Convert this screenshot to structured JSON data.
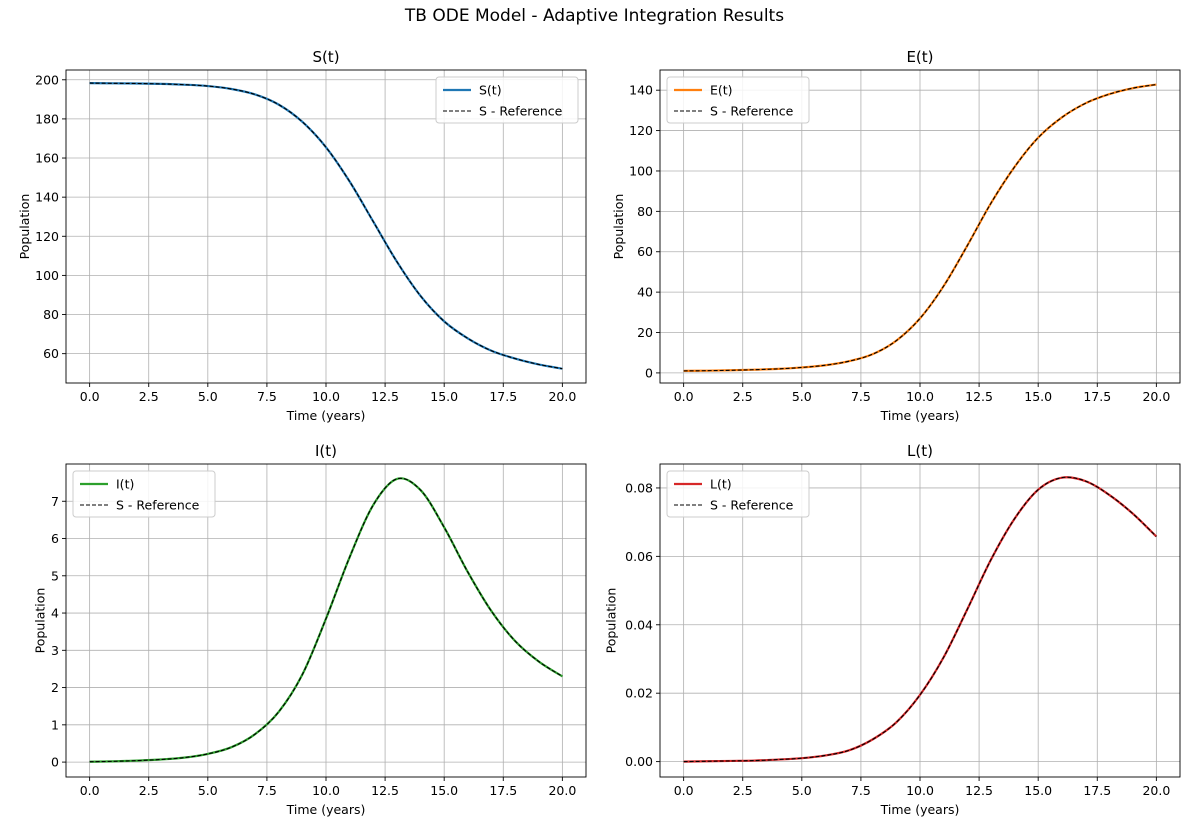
{
  "figure": {
    "title": "TB ODE Model - Adaptive Integration Results"
  },
  "chart_data": [
    {
      "type": "line",
      "title": "S(t)",
      "xlabel": "Time (years)",
      "ylabel": "Population",
      "xlim": [
        -1,
        21
      ],
      "ylim": [
        45,
        205
      ],
      "xticks": [
        "0.0",
        "2.5",
        "5.0",
        "7.5",
        "10.0",
        "12.5",
        "15.0",
        "17.5",
        "20.0"
      ],
      "xtick_values": [
        0,
        2.5,
        5,
        7.5,
        10,
        12.5,
        15,
        17.5,
        20
      ],
      "yticks": [
        "60",
        "80",
        "100",
        "120",
        "140",
        "160",
        "180",
        "200"
      ],
      "ytick_values": [
        60,
        80,
        100,
        120,
        140,
        160,
        180,
        200
      ],
      "grid": true,
      "legend_position": "upper-right",
      "x": [
        0,
        1,
        2,
        3,
        4,
        5,
        6,
        7,
        8,
        9,
        10,
        11,
        12,
        13,
        14,
        15,
        16,
        17,
        18,
        19,
        20
      ],
      "series": [
        {
          "name": "S(t)",
          "color": "#1f77b4",
          "style": "solid",
          "values": [
            198.3,
            198.2,
            198.1,
            197.9,
            197.5,
            196.8,
            195.3,
            192.5,
            187.3,
            178.5,
            165.5,
            148.0,
            127.5,
            107.0,
            89.5,
            76.5,
            67.8,
            61.5,
            57.5,
            54.5,
            52.3
          ]
        },
        {
          "name": "S - Reference",
          "color": "#000000",
          "style": "dashed",
          "values": [
            198.3,
            198.2,
            198.1,
            197.9,
            197.5,
            196.8,
            195.3,
            192.5,
            187.3,
            178.5,
            165.5,
            148.0,
            127.5,
            107.0,
            89.5,
            76.5,
            67.8,
            61.5,
            57.5,
            54.5,
            52.3
          ]
        }
      ]
    },
    {
      "type": "line",
      "title": "E(t)",
      "xlabel": "Time (years)",
      "ylabel": "Population",
      "xlim": [
        -1,
        21
      ],
      "ylim": [
        -5,
        150
      ],
      "xticks": [
        "0.0",
        "2.5",
        "5.0",
        "7.5",
        "10.0",
        "12.5",
        "15.0",
        "17.5",
        "20.0"
      ],
      "xtick_values": [
        0,
        2.5,
        5,
        7.5,
        10,
        12.5,
        15,
        17.5,
        20
      ],
      "yticks": [
        "0",
        "20",
        "40",
        "60",
        "80",
        "100",
        "120",
        "140"
      ],
      "ytick_values": [
        0,
        20,
        40,
        60,
        80,
        100,
        120,
        140
      ],
      "grid": true,
      "legend_position": "upper-left",
      "x": [
        0,
        1,
        2,
        3,
        4,
        5,
        6,
        7,
        8,
        9,
        10,
        11,
        12,
        13,
        14,
        15,
        16,
        17,
        18,
        19,
        20
      ],
      "series": [
        {
          "name": "E(t)",
          "color": "#ff7f0e",
          "style": "solid",
          "values": [
            1.0,
            1.1,
            1.3,
            1.6,
            2.0,
            2.7,
            3.8,
            5.8,
            9.3,
            16.0,
            27.0,
            43.0,
            63.0,
            84.0,
            102.0,
            116.5,
            126.5,
            133.5,
            138.0,
            141.0,
            142.8
          ]
        },
        {
          "name": "S - Reference",
          "color": "#000000",
          "style": "dashed",
          "values": [
            1.0,
            1.1,
            1.3,
            1.6,
            2.0,
            2.7,
            3.8,
            5.8,
            9.3,
            16.0,
            27.0,
            43.0,
            63.0,
            84.0,
            102.0,
            116.5,
            126.5,
            133.5,
            138.0,
            141.0,
            142.8
          ]
        }
      ]
    },
    {
      "type": "line",
      "title": "I(t)",
      "xlabel": "Time (years)",
      "ylabel": "Population",
      "xlim": [
        -1,
        21
      ],
      "ylim": [
        -0.4,
        8.0
      ],
      "xticks": [
        "0.0",
        "2.5",
        "5.0",
        "7.5",
        "10.0",
        "12.5",
        "15.0",
        "17.5",
        "20.0"
      ],
      "xtick_values": [
        0,
        2.5,
        5,
        7.5,
        10,
        12.5,
        15,
        17.5,
        20
      ],
      "yticks": [
        "0",
        "1",
        "2",
        "3",
        "4",
        "5",
        "6",
        "7"
      ],
      "ytick_values": [
        0,
        1,
        2,
        3,
        4,
        5,
        6,
        7
      ],
      "grid": true,
      "legend_position": "upper-left",
      "x": [
        0,
        1,
        2,
        3,
        4,
        5,
        6,
        7,
        8,
        9,
        10,
        11,
        12,
        13,
        14,
        15,
        16,
        17,
        18,
        19,
        20
      ],
      "series": [
        {
          "name": "I(t)",
          "color": "#2ca02c",
          "style": "solid",
          "values": [
            0.01,
            0.02,
            0.04,
            0.07,
            0.12,
            0.22,
            0.4,
            0.75,
            1.35,
            2.35,
            3.85,
            5.5,
            6.9,
            7.6,
            7.3,
            6.3,
            5.1,
            4.05,
            3.25,
            2.7,
            2.3
          ]
        },
        {
          "name": "S - Reference",
          "color": "#000000",
          "style": "dashed",
          "values": [
            0.01,
            0.02,
            0.04,
            0.07,
            0.12,
            0.22,
            0.4,
            0.75,
            1.35,
            2.35,
            3.85,
            5.5,
            6.9,
            7.6,
            7.3,
            6.3,
            5.1,
            4.05,
            3.25,
            2.7,
            2.3
          ]
        }
      ]
    },
    {
      "type": "line",
      "title": "L(t)",
      "xlabel": "Time (years)",
      "ylabel": "Population",
      "xlim": [
        -1,
        21
      ],
      "ylim": [
        -0.0045,
        0.087
      ],
      "xticks": [
        "0.0",
        "2.5",
        "5.0",
        "7.5",
        "10.0",
        "12.5",
        "15.0",
        "17.5",
        "20.0"
      ],
      "xtick_values": [
        0,
        2.5,
        5,
        7.5,
        10,
        12.5,
        15,
        17.5,
        20
      ],
      "yticks": [
        "0.00",
        "0.02",
        "0.04",
        "0.06",
        "0.08"
      ],
      "ytick_values": [
        0,
        0.02,
        0.04,
        0.06,
        0.08
      ],
      "grid": true,
      "legend_position": "upper-left",
      "x": [
        0,
        1,
        2,
        3,
        4,
        5,
        6,
        7,
        8,
        9,
        10,
        11,
        12,
        13,
        14,
        15,
        16,
        17,
        18,
        19,
        20
      ],
      "series": [
        {
          "name": "L(t)",
          "color": "#d62728",
          "style": "solid",
          "values": [
            0.0,
            0.0001,
            0.0002,
            0.0003,
            0.0006,
            0.001,
            0.0018,
            0.0033,
            0.0065,
            0.0115,
            0.0195,
            0.0305,
            0.0445,
            0.059,
            0.071,
            0.0795,
            0.083,
            0.082,
            0.078,
            0.0725,
            0.0658
          ]
        },
        {
          "name": "S - Reference",
          "color": "#000000",
          "style": "dashed",
          "values": [
            0.0,
            0.0001,
            0.0002,
            0.0003,
            0.0006,
            0.001,
            0.0018,
            0.0033,
            0.0065,
            0.0115,
            0.0195,
            0.0305,
            0.0445,
            0.059,
            0.071,
            0.0795,
            0.083,
            0.082,
            0.078,
            0.0725,
            0.0658
          ]
        }
      ]
    }
  ]
}
